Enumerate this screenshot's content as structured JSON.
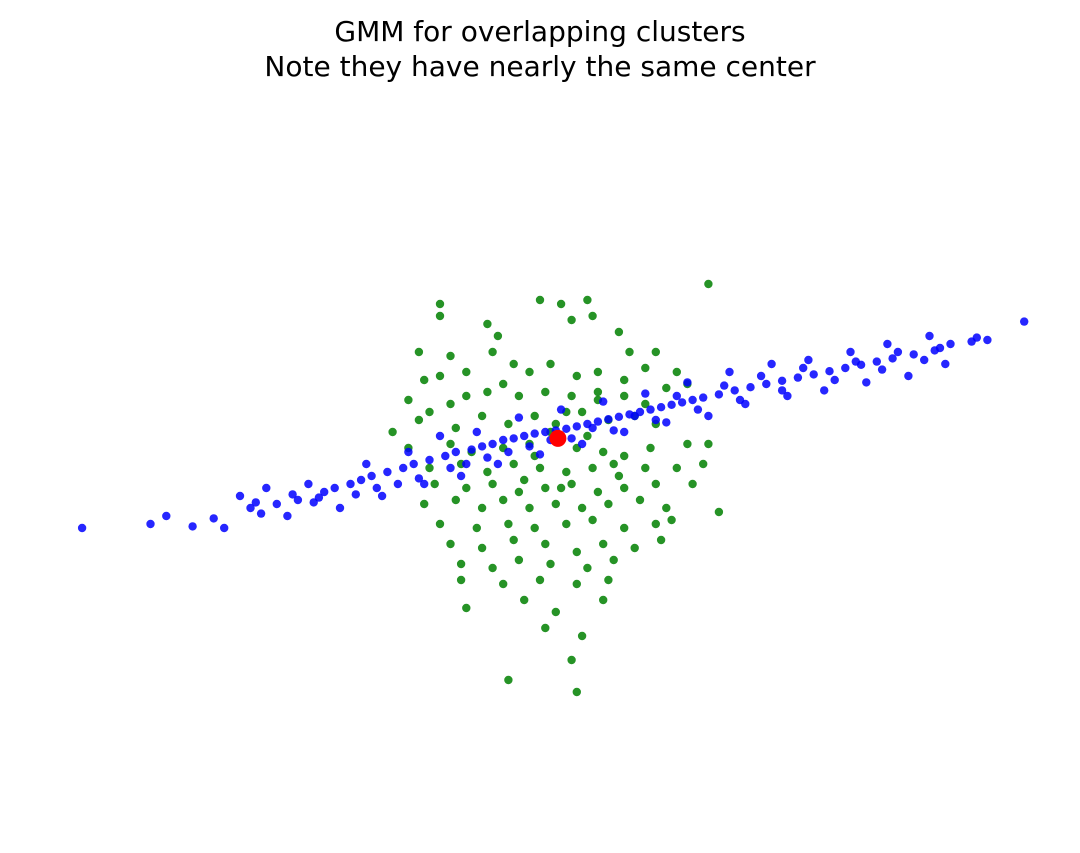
{
  "chart_data": {
    "type": "scatter",
    "title": "GMM for overlapping clusters",
    "subtitle": "Note they have nearly the same center",
    "axes_visible": false,
    "grid": false,
    "xlim": [
      -5.0,
      4.5
    ],
    "ylim": [
      -4.5,
      4.0
    ],
    "colors": {
      "cluster_1": "#008000",
      "cluster_2": "#0000ff",
      "center": "#ff0000"
    },
    "series": [
      {
        "points": [
          [
            -1.2,
            1.7
          ],
          [
            -1.2,
            1.55
          ],
          [
            -0.25,
            1.75
          ],
          [
            -0.05,
            1.7
          ],
          [
            0.2,
            1.75
          ],
          [
            0.25,
            1.55
          ],
          [
            0.05,
            1.5
          ],
          [
            1.35,
            1.95
          ],
          [
            -0.75,
            1.45
          ],
          [
            -0.65,
            1.3
          ],
          [
            -1.4,
            1.1
          ],
          [
            -1.1,
            1.05
          ],
          [
            -0.7,
            1.1
          ],
          [
            0.5,
            1.35
          ],
          [
            0.6,
            1.1
          ],
          [
            0.85,
            1.1
          ],
          [
            0.75,
            0.9
          ],
          [
            1.05,
            0.85
          ],
          [
            -1.35,
            0.75
          ],
          [
            -1.2,
            0.8
          ],
          [
            -0.95,
            0.85
          ],
          [
            -0.5,
            0.95
          ],
          [
            -0.35,
            0.85
          ],
          [
            -0.15,
            0.95
          ],
          [
            0.1,
            0.8
          ],
          [
            0.3,
            0.85
          ],
          [
            0.55,
            0.75
          ],
          [
            0.95,
            0.65
          ],
          [
            1.15,
            0.7
          ],
          [
            -1.5,
            0.5
          ],
          [
            -1.3,
            0.35
          ],
          [
            -1.1,
            0.45
          ],
          [
            -0.95,
            0.55
          ],
          [
            -0.75,
            0.6
          ],
          [
            -0.45,
            0.55
          ],
          [
            -0.2,
            0.6
          ],
          [
            0.05,
            0.55
          ],
          [
            0.3,
            0.5
          ],
          [
            0.55,
            0.55
          ],
          [
            0.75,
            0.45
          ],
          [
            -1.65,
            0.1
          ],
          [
            -1.4,
            0.25
          ],
          [
            -1.05,
            0.15
          ],
          [
            -0.8,
            0.3
          ],
          [
            -0.55,
            0.2
          ],
          [
            -0.3,
            0.3
          ],
          [
            -0.1,
            0.2
          ],
          [
            0.15,
            0.35
          ],
          [
            0.4,
            0.25
          ],
          [
            0.65,
            0.3
          ],
          [
            0.85,
            0.2
          ],
          [
            -1.5,
            -0.1
          ],
          [
            -1.1,
            -0.05
          ],
          [
            -0.9,
            -0.15
          ],
          [
            -0.6,
            -0.1
          ],
          [
            -0.35,
            -0.05
          ],
          [
            0.1,
            -0.1
          ],
          [
            0.35,
            -0.15
          ],
          [
            0.55,
            -0.2
          ],
          [
            0.8,
            -0.1
          ],
          [
            1.15,
            -0.05
          ],
          [
            1.35,
            -0.05
          ],
          [
            -1.3,
            -0.35
          ],
          [
            -1.0,
            -0.3
          ],
          [
            -0.75,
            -0.4
          ],
          [
            -0.5,
            -0.3
          ],
          [
            -0.25,
            -0.35
          ],
          [
            0.0,
            -0.4
          ],
          [
            0.25,
            -0.35
          ],
          [
            0.5,
            -0.45
          ],
          [
            0.75,
            -0.35
          ],
          [
            1.05,
            -0.35
          ],
          [
            1.3,
            -0.3
          ],
          [
            -1.25,
            -0.55
          ],
          [
            -0.95,
            -0.6
          ],
          [
            -0.7,
            -0.55
          ],
          [
            -0.45,
            -0.65
          ],
          [
            -0.2,
            -0.6
          ],
          [
            0.05,
            -0.55
          ],
          [
            0.3,
            -0.65
          ],
          [
            0.55,
            -0.6
          ],
          [
            0.85,
            -0.55
          ],
          [
            1.2,
            -0.55
          ],
          [
            -1.35,
            -0.8
          ],
          [
            -1.05,
            -0.75
          ],
          [
            -0.8,
            -0.85
          ],
          [
            -0.6,
            -0.75
          ],
          [
            -0.35,
            -0.85
          ],
          [
            -0.1,
            -0.8
          ],
          [
            0.15,
            -0.85
          ],
          [
            0.4,
            -0.8
          ],
          [
            0.7,
            -0.75
          ],
          [
            0.95,
            -0.85
          ],
          [
            1.45,
            -0.9
          ],
          [
            -1.2,
            -1.05
          ],
          [
            -0.85,
            -1.1
          ],
          [
            -0.55,
            -1.05
          ],
          [
            -0.3,
            -1.1
          ],
          [
            0.0,
            -1.05
          ],
          [
            0.25,
            -1.0
          ],
          [
            0.55,
            -1.1
          ],
          [
            0.85,
            -1.05
          ],
          [
            1.0,
            -1.0
          ],
          [
            -1.1,
            -1.3
          ],
          [
            -0.8,
            -1.35
          ],
          [
            -0.5,
            -1.25
          ],
          [
            -0.2,
            -1.3
          ],
          [
            0.1,
            -1.4
          ],
          [
            0.35,
            -1.3
          ],
          [
            0.65,
            -1.35
          ],
          [
            0.9,
            -1.25
          ],
          [
            -1.0,
            -1.55
          ],
          [
            -0.7,
            -1.6
          ],
          [
            -0.45,
            -1.5
          ],
          [
            -0.15,
            -1.55
          ],
          [
            0.2,
            -1.6
          ],
          [
            0.45,
            -1.5
          ],
          [
            -1.0,
            -1.75
          ],
          [
            -0.6,
            -1.8
          ],
          [
            -0.25,
            -1.75
          ],
          [
            0.1,
            -1.8
          ],
          [
            0.4,
            -1.75
          ],
          [
            -0.95,
            -2.1
          ],
          [
            -0.4,
            -2.0
          ],
          [
            -0.1,
            -2.15
          ],
          [
            0.35,
            -2.0
          ],
          [
            -0.2,
            -2.35
          ],
          [
            0.15,
            -2.45
          ],
          [
            0.05,
            -2.75
          ],
          [
            -0.55,
            -3.0
          ],
          [
            0.1,
            -3.15
          ],
          [
            -0.3,
            -0.2
          ],
          [
            -0.15,
            0.1
          ],
          [
            0.0,
            0.35
          ],
          [
            0.2,
            0.05
          ],
          [
            -0.4,
            -0.5
          ],
          [
            0.45,
            -0.3
          ],
          [
            -0.05,
            -0.6
          ],
          [
            0.3,
            0.6
          ],
          [
            -0.6,
            0.7
          ]
        ]
      },
      {
        "points": [
          [
            -4.6,
            -1.1
          ],
          [
            -3.95,
            -1.05
          ],
          [
            -3.55,
            -1.08
          ],
          [
            -3.35,
            -0.98
          ],
          [
            -3.25,
            -1.1
          ],
          [
            -3.0,
            -0.85
          ],
          [
            -2.9,
            -0.92
          ],
          [
            -2.75,
            -0.8
          ],
          [
            -2.55,
            -0.75
          ],
          [
            -2.4,
            -0.78
          ],
          [
            -2.3,
            -0.65
          ],
          [
            -2.2,
            -0.6
          ],
          [
            -2.05,
            -0.55
          ],
          [
            -1.95,
            -0.5
          ],
          [
            -1.85,
            -0.45
          ],
          [
            -1.7,
            -0.4
          ],
          [
            -1.55,
            -0.35
          ],
          [
            -1.45,
            -0.3
          ],
          [
            -1.3,
            -0.25
          ],
          [
            -1.15,
            -0.2
          ],
          [
            -1.05,
            -0.15
          ],
          [
            -0.9,
            -0.12
          ],
          [
            -0.8,
            -0.08
          ],
          [
            -0.7,
            -0.05
          ],
          [
            -0.6,
            0.0
          ],
          [
            -0.5,
            0.02
          ],
          [
            -0.4,
            0.05
          ],
          [
            -0.3,
            0.08
          ],
          [
            -0.2,
            0.1
          ],
          [
            -0.1,
            0.12
          ],
          [
            0.0,
            0.14
          ],
          [
            0.1,
            0.17
          ],
          [
            0.2,
            0.2
          ],
          [
            0.3,
            0.23
          ],
          [
            0.4,
            0.26
          ],
          [
            0.5,
            0.29
          ],
          [
            0.6,
            0.32
          ],
          [
            0.7,
            0.35
          ],
          [
            0.8,
            0.38
          ],
          [
            0.9,
            0.41
          ],
          [
            1.0,
            0.44
          ],
          [
            1.1,
            0.47
          ],
          [
            1.2,
            0.5
          ],
          [
            1.3,
            0.53
          ],
          [
            1.45,
            0.57
          ],
          [
            1.6,
            0.62
          ],
          [
            1.75,
            0.66
          ],
          [
            1.9,
            0.7
          ],
          [
            2.05,
            0.74
          ],
          [
            2.2,
            0.78
          ],
          [
            2.35,
            0.82
          ],
          [
            2.5,
            0.86
          ],
          [
            2.65,
            0.9
          ],
          [
            2.8,
            0.94
          ],
          [
            2.95,
            0.98
          ],
          [
            3.1,
            1.02
          ],
          [
            3.3,
            1.07
          ],
          [
            3.5,
            1.12
          ],
          [
            3.65,
            1.2
          ],
          [
            3.85,
            1.23
          ],
          [
            4.0,
            1.25
          ],
          [
            4.35,
            1.48
          ],
          [
            -2.85,
            -0.6
          ],
          [
            -2.65,
            -0.95
          ],
          [
            -2.45,
            -0.55
          ],
          [
            -2.15,
            -0.85
          ],
          [
            -1.9,
            -0.3
          ],
          [
            -1.75,
            -0.7
          ],
          [
            -1.5,
            -0.15
          ],
          [
            -1.35,
            -0.55
          ],
          [
            -1.2,
            0.05
          ],
          [
            -1.0,
            -0.45
          ],
          [
            -0.85,
            0.1
          ],
          [
            -0.65,
            -0.3
          ],
          [
            -0.45,
            0.28
          ],
          [
            -0.25,
            -0.18
          ],
          [
            -0.05,
            0.38
          ],
          [
            0.15,
            -0.05
          ],
          [
            0.35,
            0.48
          ],
          [
            0.55,
            0.1
          ],
          [
            0.75,
            0.58
          ],
          [
            0.95,
            0.22
          ],
          [
            1.15,
            0.72
          ],
          [
            1.35,
            0.3
          ],
          [
            1.55,
            0.85
          ],
          [
            1.7,
            0.45
          ],
          [
            1.95,
            0.95
          ],
          [
            2.1,
            0.55
          ],
          [
            2.3,
            1.0
          ],
          [
            2.45,
            0.62
          ],
          [
            2.7,
            1.1
          ],
          [
            2.85,
            0.72
          ],
          [
            3.05,
            1.2
          ],
          [
            3.25,
            0.8
          ],
          [
            3.45,
            1.3
          ],
          [
            3.6,
            0.95
          ],
          [
            -3.8,
            -0.95
          ],
          [
            -3.1,
            -0.7
          ],
          [
            -2.6,
            -0.68
          ],
          [
            -2.0,
            -0.68
          ],
          [
            -1.6,
            -0.55
          ],
          [
            -1.1,
            -0.35
          ],
          [
            -0.75,
            -0.22
          ],
          [
            -0.35,
            -0.08
          ],
          [
            0.05,
            0.02
          ],
          [
            0.45,
            0.12
          ],
          [
            0.85,
            0.25
          ],
          [
            1.25,
            0.38
          ],
          [
            1.65,
            0.5
          ],
          [
            2.05,
            0.62
          ],
          [
            2.55,
            0.75
          ],
          [
            3.0,
            0.88
          ],
          [
            3.4,
            1.0
          ],
          [
            -2.95,
            -0.78
          ],
          [
            -2.35,
            -0.72
          ],
          [
            -1.8,
            -0.6
          ],
          [
            -1.4,
            -0.48
          ],
          [
            -0.95,
            -0.3
          ],
          [
            -0.55,
            -0.15
          ],
          [
            -0.15,
            0.0
          ],
          [
            0.25,
            0.15
          ],
          [
            0.65,
            0.3
          ],
          [
            1.05,
            0.55
          ],
          [
            1.5,
            0.68
          ],
          [
            1.85,
            0.8
          ],
          [
            2.25,
            0.9
          ],
          [
            2.75,
            0.98
          ],
          [
            3.15,
            1.1
          ],
          [
            3.55,
            1.15
          ],
          [
            3.9,
            1.28
          ]
        ]
      },
      {
        "points": [
          [
            -0.08,
            0.02
          ]
        ]
      }
    ]
  }
}
